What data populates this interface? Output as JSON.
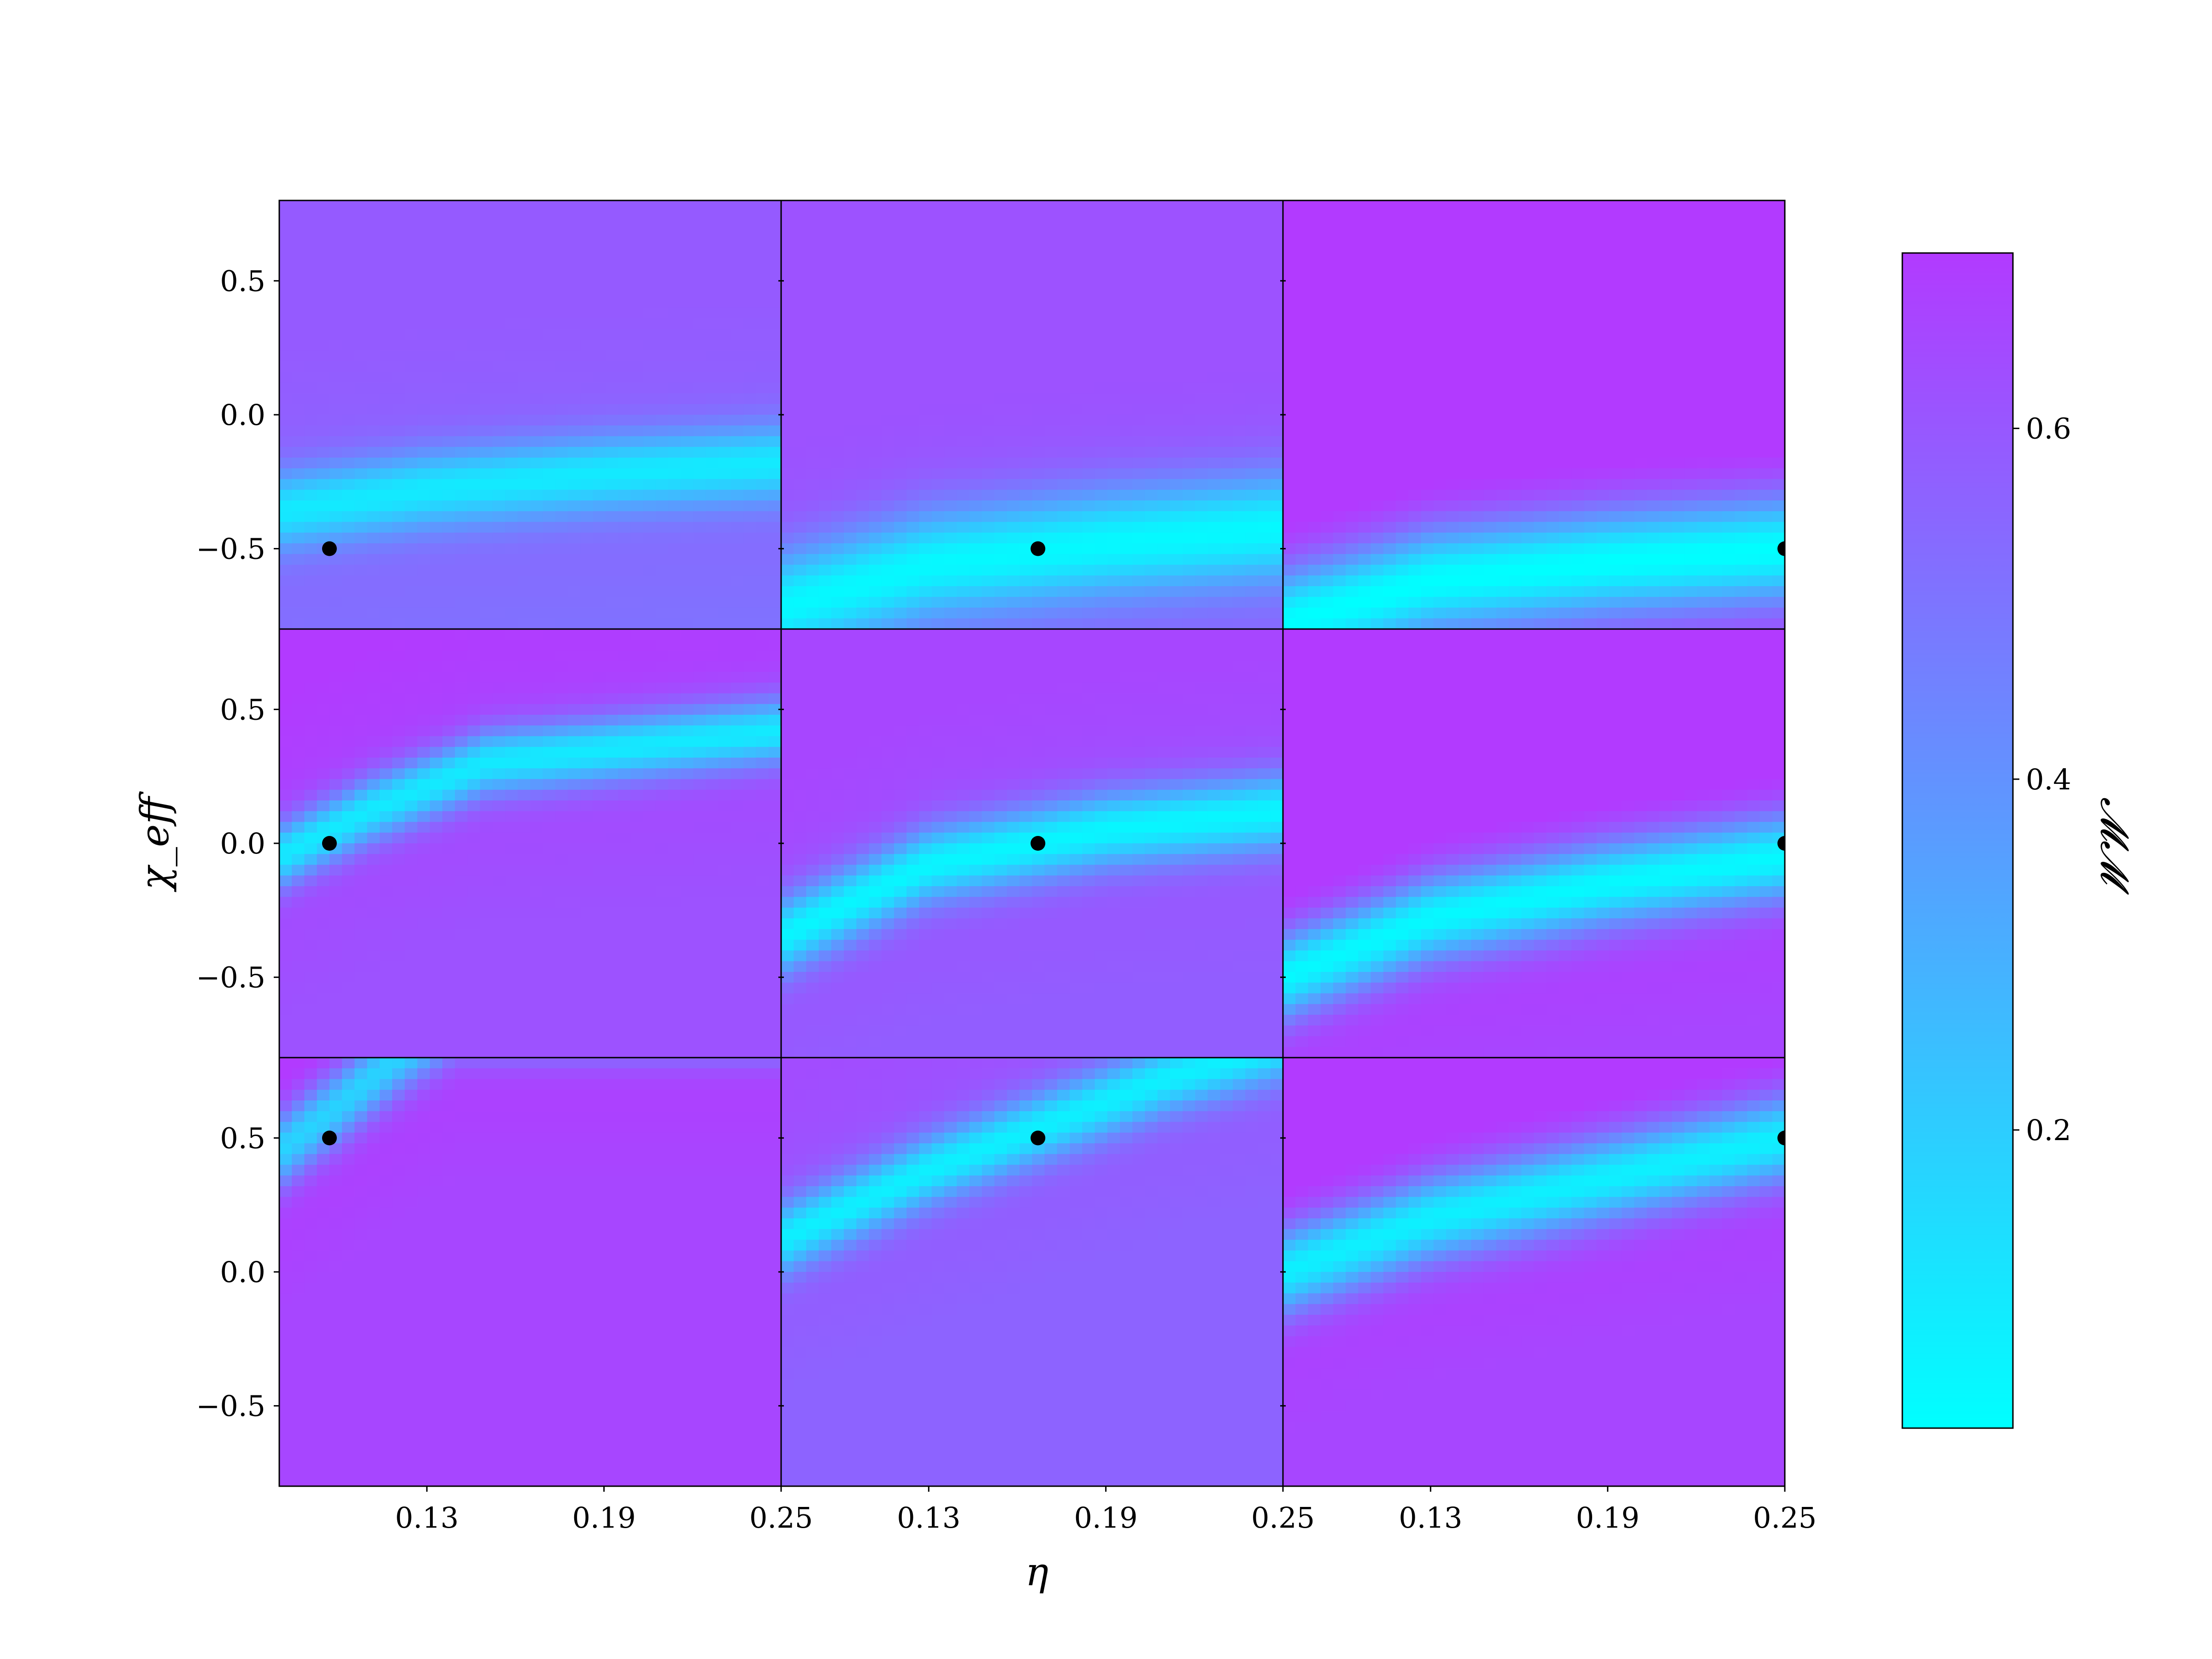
{
  "chart_data": {
    "type": "heatmap",
    "layout": {
      "rows": 3,
      "cols": 3
    },
    "xlabel": "η",
    "ylabel": "χ_eff",
    "colorbar_label": "𝓜𝓜",
    "x_ticks": [
      "0.13",
      "0.19",
      "0.25"
    ],
    "x_tick_values": [
      0.13,
      0.19,
      0.25
    ],
    "y_ticks": [
      "0.5",
      "0.0",
      "−0.5"
    ],
    "y_tick_values": [
      0.5,
      0.0,
      -0.5
    ],
    "xlim": [
      0.08,
      0.25
    ],
    "ylim": [
      -0.8,
      0.8
    ],
    "colorbar_ticks": [
      "0.2",
      "0.4",
      "0.6"
    ],
    "colorbar_tick_values": [
      0.2,
      0.4,
      0.6
    ],
    "colorbar_range": [
      0.03,
      0.7
    ],
    "colormap": "cool",
    "colormap_stops": [
      "#00ffff",
      "#b23aff"
    ],
    "colorbar_low": "#00ffff",
    "colorbar_high": "#b23aff",
    "marker_color": "#000000",
    "panels": [
      {
        "row": 0,
        "col": 0,
        "marker": {
          "eta": 0.097,
          "chi_eff": -0.5
        },
        "valley": [
          [
            0.08,
            -0.36
          ],
          [
            0.13,
            -0.28
          ],
          [
            0.19,
            -0.22
          ],
          [
            0.25,
            -0.18
          ]
        ],
        "slope": 0.75,
        "width": 0.14,
        "min": 0.1,
        "far": 0.55
      },
      {
        "row": 0,
        "col": 1,
        "marker": {
          "eta": 0.167,
          "chi_eff": -0.5
        },
        "valley": [
          [
            0.08,
            -0.72
          ],
          [
            0.13,
            -0.56
          ],
          [
            0.19,
            -0.48
          ],
          [
            0.25,
            -0.42
          ]
        ],
        "slope": 0.5,
        "width": 0.2,
        "min": 0.05,
        "far": 0.58
      },
      {
        "row": 0,
        "col": 2,
        "marker": {
          "eta": 0.25,
          "chi_eff": -0.5
        },
        "valley": [
          [
            0.08,
            -0.78
          ],
          [
            0.13,
            -0.62
          ],
          [
            0.19,
            -0.55
          ],
          [
            0.25,
            -0.5
          ]
        ],
        "slope": 0.42,
        "width": 0.2,
        "min": 0.03,
        "far": 0.7
      },
      {
        "row": 1,
        "col": 0,
        "marker": {
          "eta": 0.097,
          "chi_eff": 0.0
        },
        "valley": [
          [
            0.08,
            -0.05
          ],
          [
            0.11,
            0.12
          ],
          [
            0.15,
            0.3
          ],
          [
            0.25,
            0.42
          ]
        ],
        "slope": 0.85,
        "width": 0.12,
        "min": 0.1,
        "far": 0.66
      },
      {
        "row": 1,
        "col": 1,
        "marker": {
          "eta": 0.167,
          "chi_eff": 0.0
        },
        "valley": [
          [
            0.08,
            -0.35
          ],
          [
            0.13,
            -0.08
          ],
          [
            0.19,
            0.05
          ],
          [
            0.25,
            0.12
          ]
        ],
        "slope": 0.72,
        "width": 0.14,
        "min": 0.06,
        "far": 0.62
      },
      {
        "row": 1,
        "col": 2,
        "marker": {
          "eta": 0.25,
          "chi_eff": 0.0
        },
        "valley": [
          [
            0.08,
            -0.5
          ],
          [
            0.13,
            -0.28
          ],
          [
            0.19,
            -0.15
          ],
          [
            0.25,
            -0.05
          ]
        ],
        "slope": 0.6,
        "width": 0.16,
        "min": 0.05,
        "far": 0.7
      },
      {
        "row": 2,
        "col": 0,
        "marker": {
          "eta": 0.097,
          "chi_eff": 0.5
        },
        "valley": [
          [
            0.08,
            0.45
          ],
          [
            0.1,
            0.62
          ],
          [
            0.12,
            0.8
          ],
          [
            0.14,
            0.95
          ]
        ],
        "slope": 1.2,
        "width": 0.14,
        "min": 0.18,
        "far": 0.7
      },
      {
        "row": 2,
        "col": 1,
        "marker": {
          "eta": 0.167,
          "chi_eff": 0.5
        },
        "valley": [
          [
            0.08,
            0.12
          ],
          [
            0.13,
            0.38
          ],
          [
            0.17,
            0.55
          ],
          [
            0.21,
            0.72
          ],
          [
            0.25,
            0.85
          ]
        ],
        "slope": 0.72,
        "width": 0.13,
        "min": 0.08,
        "far": 0.6
      },
      {
        "row": 2,
        "col": 2,
        "marker": {
          "eta": 0.25,
          "chi_eff": 0.5
        },
        "valley": [
          [
            0.08,
            0.0
          ],
          [
            0.13,
            0.2
          ],
          [
            0.19,
            0.35
          ],
          [
            0.25,
            0.5
          ]
        ],
        "slope": 0.6,
        "width": 0.16,
        "min": 0.08,
        "far": 0.7
      }
    ]
  }
}
